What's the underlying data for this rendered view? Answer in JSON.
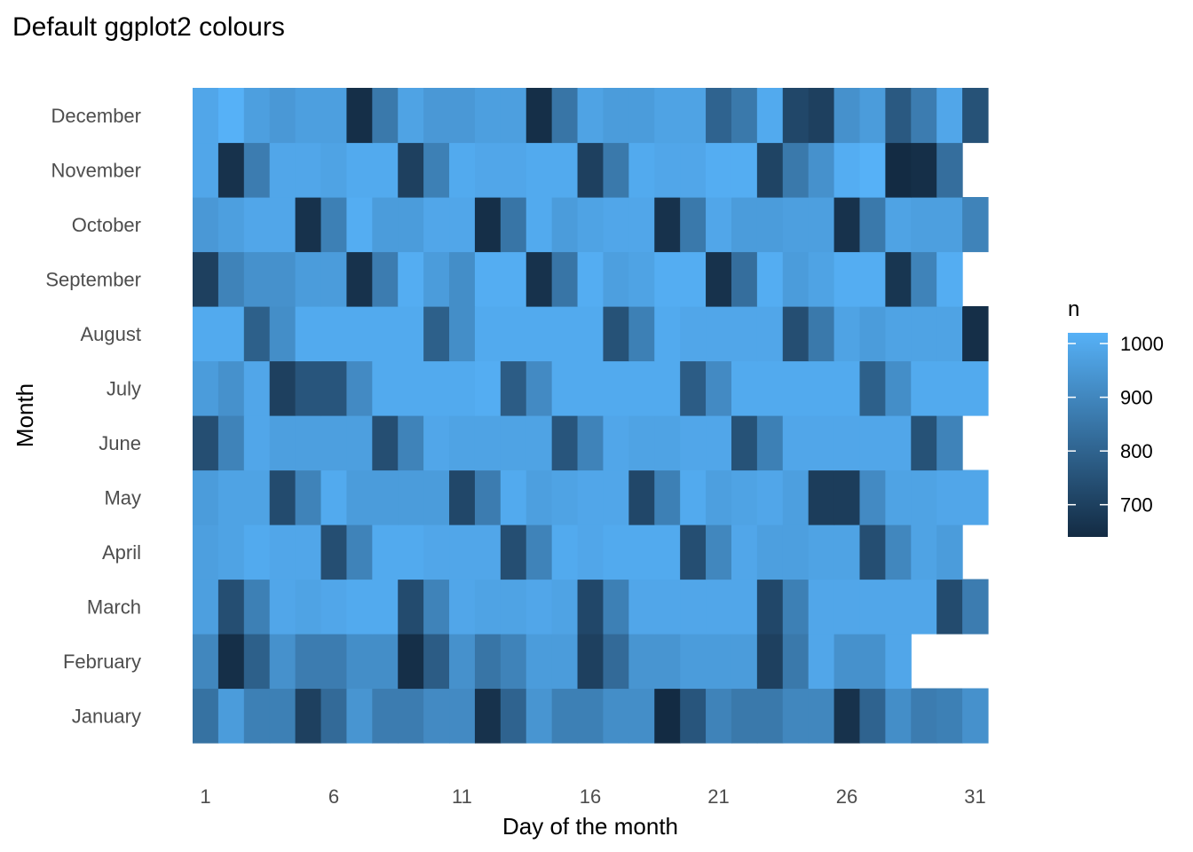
{
  "chart_data": {
    "type": "heatmap",
    "title": "Default ggplot2 colours",
    "xlabel": "Day of the month",
    "ylabel": "Month",
    "x_ticks": [
      1,
      6,
      11,
      16,
      21,
      26,
      31
    ],
    "days": [
      1,
      2,
      3,
      4,
      5,
      6,
      7,
      8,
      9,
      10,
      11,
      12,
      13,
      14,
      15,
      16,
      17,
      18,
      19,
      20,
      21,
      22,
      23,
      24,
      25,
      26,
      27,
      28,
      29,
      30,
      31
    ],
    "months": [
      "January",
      "February",
      "March",
      "April",
      "May",
      "June",
      "July",
      "August",
      "September",
      "October",
      "November",
      "December"
    ],
    "legend": {
      "title": "n",
      "ticks": [
        700,
        800,
        900,
        1000
      ],
      "range": [
        640,
        1020
      ],
      "color_low": "#132B43",
      "color_high": "#56B1F7",
      "placement": "right"
    },
    "grid": false,
    "values": {
      "January": [
        840,
        960,
        880,
        880,
        700,
        820,
        940,
        870,
        870,
        910,
        910,
        660,
        800,
        940,
        880,
        880,
        920,
        920,
        640,
        760,
        890,
        860,
        860,
        900,
        900,
        660,
        800,
        920,
        870,
        880,
        930
      ],
      "February": [
        900,
        650,
        790,
        930,
        870,
        870,
        920,
        920,
        650,
        780,
        930,
        850,
        890,
        960,
        960,
        700,
        820,
        940,
        940,
        960,
        960,
        960,
        700,
        860,
        990,
        930,
        930,
        990,
        null,
        null,
        null
      ],
      "March": [
        970,
        740,
        880,
        990,
        980,
        990,
        1000,
        1000,
        730,
        890,
        990,
        980,
        980,
        990,
        980,
        720,
        880,
        990,
        990,
        990,
        990,
        990,
        720,
        880,
        990,
        990,
        990,
        990,
        990,
        730,
        870
      ],
      "April": [
        970,
        980,
        1000,
        990,
        990,
        740,
        890,
        1000,
        1000,
        990,
        990,
        990,
        740,
        890,
        1000,
        990,
        1000,
        1000,
        1000,
        740,
        900,
        990,
        970,
        970,
        980,
        980,
        740,
        900,
        980,
        960,
        null
      ],
      "May": [
        960,
        980,
        980,
        730,
        890,
        1000,
        960,
        960,
        960,
        960,
        720,
        870,
        1000,
        970,
        980,
        990,
        990,
        720,
        880,
        1000,
        970,
        980,
        990,
        970,
        690,
        690,
        910,
        980,
        980,
        990,
        990
      ],
      "June": [
        740,
        890,
        990,
        970,
        970,
        970,
        970,
        740,
        890,
        990,
        980,
        980,
        980,
        980,
        760,
        890,
        990,
        980,
        980,
        990,
        990,
        750,
        880,
        990,
        990,
        990,
        990,
        990,
        750,
        890,
        null
      ],
      "July": [
        960,
        930,
        990,
        700,
        760,
        760,
        910,
        1000,
        1000,
        1000,
        1000,
        1010,
        780,
        910,
        1000,
        1000,
        1000,
        1000,
        1000,
        780,
        910,
        1000,
        1000,
        1000,
        1000,
        1000,
        790,
        920,
        1000,
        1000,
        1000
      ],
      "August": [
        1000,
        1000,
        790,
        920,
        1000,
        1000,
        1000,
        1000,
        1000,
        790,
        920,
        1000,
        1000,
        1000,
        1000,
        1000,
        750,
        880,
        1000,
        990,
        990,
        990,
        990,
        740,
        860,
        980,
        960,
        980,
        980,
        980,
        650
      ],
      "September": [
        700,
        890,
        930,
        930,
        960,
        960,
        660,
        870,
        1010,
        960,
        920,
        1010,
        1010,
        660,
        850,
        1010,
        970,
        980,
        1010,
        1010,
        660,
        830,
        1010,
        960,
        980,
        1010,
        1010,
        670,
        890,
        1010,
        null
      ],
      "October": [
        950,
        970,
        990,
        990,
        660,
        880,
        1010,
        960,
        960,
        990,
        990,
        650,
        850,
        1000,
        960,
        980,
        990,
        990,
        660,
        860,
        990,
        960,
        960,
        970,
        970,
        660,
        860,
        980,
        970,
        970,
        890
      ],
      "November": [
        990,
        660,
        870,
        990,
        990,
        980,
        1000,
        1000,
        700,
        880,
        1000,
        990,
        990,
        1000,
        1000,
        700,
        860,
        1000,
        990,
        990,
        1010,
        1010,
        710,
        860,
        930,
        1010,
        1020,
        640,
        650,
        830,
        null
      ],
      "December": [
        990,
        1020,
        970,
        950,
        970,
        970,
        650,
        860,
        980,
        950,
        950,
        970,
        970,
        650,
        850,
        980,
        960,
        960,
        980,
        980,
        800,
        860,
        1000,
        720,
        700,
        930,
        960,
        770,
        870,
        990,
        750
      ]
    }
  }
}
